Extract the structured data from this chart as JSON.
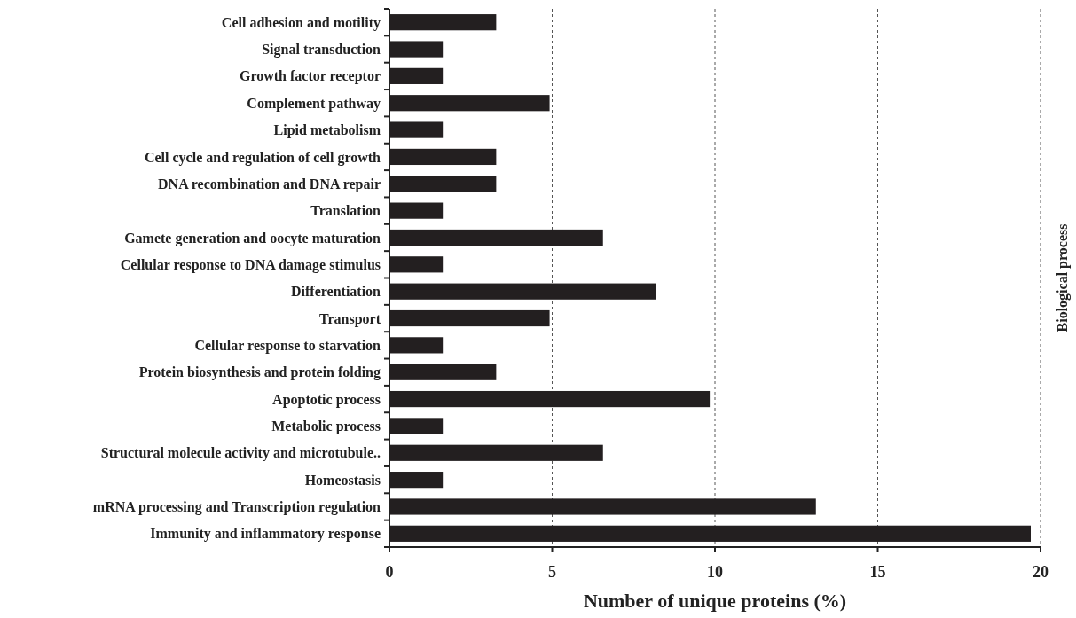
{
  "chart_data": {
    "type": "bar",
    "orientation": "horizontal",
    "categories": [
      "Cell adhesion and motility",
      "Signal transduction",
      "Growth factor receptor",
      "Complement pathway",
      "Lipid metabolism",
      "Cell cycle and regulation of cell growth",
      "DNA recombination  and DNA repair",
      "Translation",
      "Gamete generation  and oocyte maturation",
      "Cellular response to DNA damage stimulus",
      "Differentiation",
      "Transport",
      "Cellular response to starvation",
      "Protein biosynthesis and protein folding",
      "Apoptotic process",
      "Metabolic process",
      "Structural molecule activity and microtubule..",
      "Homeostasis",
      "mRNA processing and Transcription regulation",
      "Immunity and inflammatory response"
    ],
    "values": [
      3.28,
      1.64,
      1.64,
      4.92,
      1.64,
      3.28,
      3.28,
      1.64,
      6.56,
      1.64,
      8.2,
      4.92,
      1.64,
      3.28,
      9.84,
      1.64,
      6.56,
      1.64,
      13.1,
      19.7
    ],
    "color": "#231f20",
    "xlim": [
      0,
      20
    ],
    "xticks": [
      0,
      5,
      10,
      15,
      20
    ],
    "grid": "x",
    "xlabel": "Number of unique proteins (%)",
    "y2label": "Biological process"
  }
}
